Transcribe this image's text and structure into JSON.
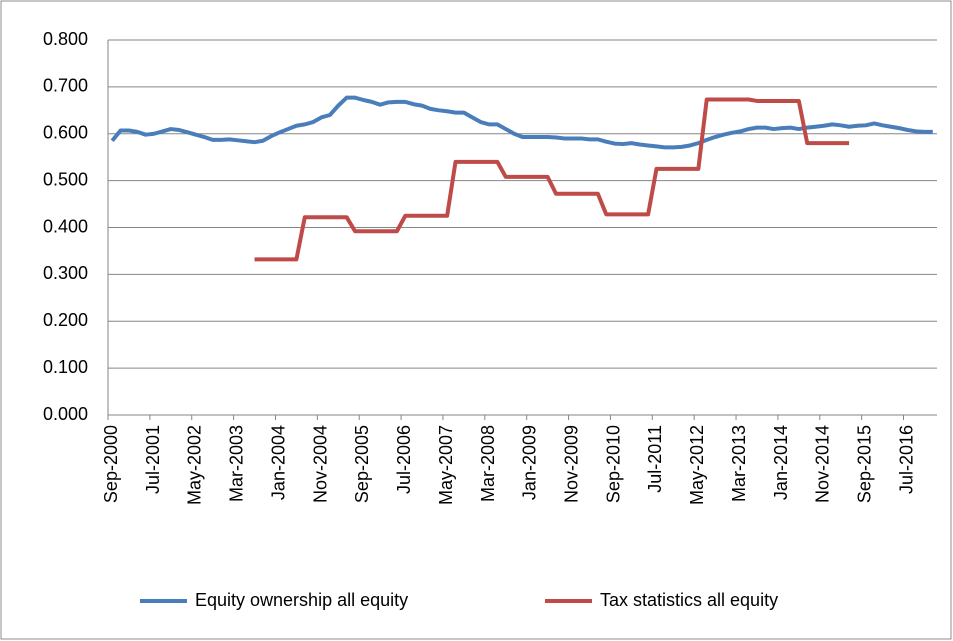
{
  "chart_data": {
    "type": "line",
    "categories": [
      "Sep-2000",
      null,
      null,
      null,
      null,
      "Jul-2001",
      null,
      null,
      null,
      null,
      "May-2002",
      null,
      null,
      null,
      null,
      "Mar-2003",
      null,
      null,
      null,
      null,
      "Jan-2004",
      null,
      null,
      null,
      null,
      "Nov-2004",
      null,
      null,
      null,
      null,
      "Sep-2005",
      null,
      null,
      null,
      null,
      "Jul-2006",
      null,
      null,
      null,
      null,
      "May-2007",
      null,
      null,
      null,
      null,
      "Mar-2008",
      null,
      null,
      null,
      null,
      "Jan-2009",
      null,
      null,
      null,
      null,
      "Nov-2009",
      null,
      null,
      null,
      null,
      "Sep-2010",
      null,
      null,
      null,
      null,
      "Jul-2011",
      null,
      null,
      null,
      null,
      "May-2012",
      null,
      null,
      null,
      null,
      "Mar-2013",
      null,
      null,
      null,
      null,
      "Jan-2014",
      null,
      null,
      null,
      null,
      "Nov-2014",
      null,
      null,
      null,
      null,
      "Sep-2015",
      null,
      null,
      null,
      null,
      "Jul-2016",
      null,
      null,
      null
    ],
    "series": [
      {
        "name": "Equity ownership all equity",
        "color": "#4a7ebb",
        "values": [
          0.585,
          0.607,
          0.607,
          0.604,
          0.598,
          0.6,
          0.605,
          0.61,
          0.608,
          0.603,
          0.598,
          0.593,
          0.587,
          0.587,
          0.588,
          0.586,
          0.584,
          0.582,
          0.585,
          0.595,
          0.603,
          0.61,
          0.617,
          0.62,
          0.625,
          0.635,
          0.64,
          0.66,
          0.677,
          0.677,
          0.672,
          0.668,
          0.662,
          0.667,
          0.668,
          0.668,
          0.663,
          0.66,
          0.653,
          0.65,
          0.648,
          0.645,
          0.645,
          0.635,
          0.625,
          0.62,
          0.62,
          0.61,
          0.6,
          0.593,
          0.593,
          0.593,
          0.593,
          0.592,
          0.59,
          0.59,
          0.59,
          0.588,
          0.588,
          0.583,
          0.579,
          0.578,
          0.58,
          0.577,
          0.575,
          0.573,
          0.571,
          0.571,
          0.572,
          0.575,
          0.58,
          0.587,
          0.593,
          0.598,
          0.602,
          0.605,
          0.61,
          0.613,
          0.613,
          0.61,
          0.612,
          0.613,
          0.61,
          0.613,
          0.615,
          0.617,
          0.62,
          0.618,
          0.615,
          0.617,
          0.618,
          0.622,
          0.618,
          0.615,
          0.612,
          0.608,
          0.605,
          0.604,
          0.604
        ]
      },
      {
        "name": "Tax statistics all equity",
        "color": "#be4b48",
        "values": [
          null,
          null,
          null,
          null,
          null,
          null,
          null,
          null,
          null,
          null,
          null,
          null,
          null,
          null,
          null,
          null,
          null,
          0.332,
          0.332,
          0.332,
          0.332,
          0.332,
          0.332,
          0.422,
          0.422,
          0.422,
          0.422,
          0.422,
          0.422,
          0.392,
          0.392,
          0.392,
          0.392,
          0.392,
          0.392,
          0.425,
          0.425,
          0.425,
          0.425,
          0.425,
          0.425,
          0.54,
          0.54,
          0.54,
          0.54,
          0.54,
          0.54,
          0.508,
          0.508,
          0.508,
          0.508,
          0.508,
          0.508,
          0.472,
          0.472,
          0.472,
          0.472,
          0.472,
          0.472,
          0.428,
          0.428,
          0.428,
          0.428,
          0.428,
          0.428,
          0.525,
          0.525,
          0.525,
          0.525,
          0.525,
          0.525,
          0.673,
          0.673,
          0.673,
          0.673,
          0.673,
          0.673,
          0.67,
          0.67,
          0.67,
          0.67,
          0.67,
          0.67,
          0.58,
          0.58,
          0.58,
          0.58,
          0.58,
          0.58,
          null,
          null,
          null,
          null,
          null,
          null,
          null,
          null,
          null,
          null
        ]
      }
    ],
    "ylim": [
      0,
      0.8
    ],
    "yticks": [
      {
        "value": 0,
        "label": "0.000"
      },
      {
        "value": 0.1,
        "label": "0.100"
      },
      {
        "value": 0.2,
        "label": "0.200"
      },
      {
        "value": 0.3,
        "label": "0.300"
      },
      {
        "value": 0.4,
        "label": "0.400"
      },
      {
        "value": 0.5,
        "label": "0.500"
      },
      {
        "value": 0.6,
        "label": "0.600"
      },
      {
        "value": 0.7,
        "label": "0.700"
      },
      {
        "value": 0.8,
        "label": "0.800"
      }
    ],
    "grid": true,
    "legend": "bottom"
  }
}
